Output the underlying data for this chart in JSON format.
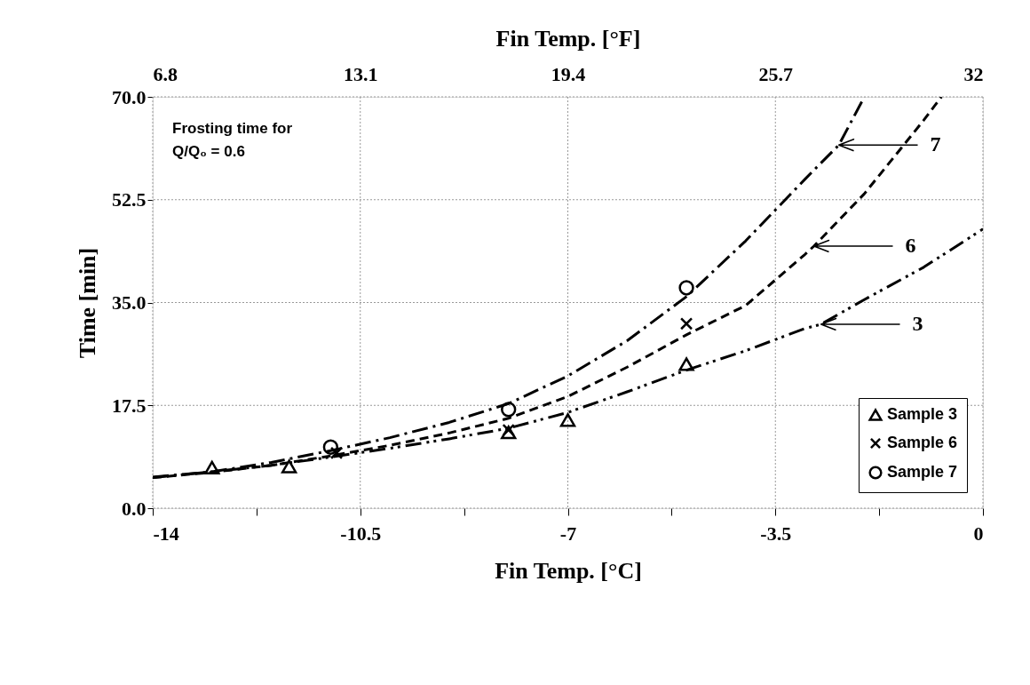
{
  "chart_data": {
    "type": "scatter",
    "xlabel": "Fin Temp. [°C]",
    "ylabel": "Time [min]",
    "x2label": "Fin Temp. [°F]",
    "xlim": [
      -14,
      0
    ],
    "ylim": [
      0,
      70
    ],
    "x2lim": [
      6.8,
      32
    ],
    "xticks": [
      -14,
      {
        "value": -12.25,
        "label": null
      },
      -10.5,
      {
        "value": -8.75,
        "label": null
      },
      -7,
      {
        "value": -5.25,
        "label": null
      },
      -3.5,
      {
        "value": -1.75,
        "label": null
      },
      0
    ],
    "yticks": [
      {
        "value": 0,
        "label": "0.0"
      },
      17.5,
      {
        "value": 35,
        "label": "35.0"
      },
      52.5,
      {
        "value": 70,
        "label": "70.0"
      }
    ],
    "x2ticks": [
      6.8,
      13.1,
      19.4,
      25.7,
      32
    ],
    "grid": true,
    "legend": "bottom right",
    "series": [
      {
        "name": "Sample 3",
        "marker": "triangle",
        "color": "#000000",
        "x": [
          -13,
          -11.7,
          -8,
          -7,
          -5
        ],
        "values": [
          6.9,
          7.1,
          12.9,
          15.0,
          24.5
        ]
      },
      {
        "name": "Sample 6",
        "marker": "cross",
        "color": "#000000",
        "x": [
          -10.9,
          -8,
          -5
        ],
        "values": [
          9.4,
          13.3,
          31.4
        ]
      },
      {
        "name": "Sample 7",
        "marker": "circle",
        "color": "#000000",
        "x": [
          -11,
          -8,
          -5
        ],
        "values": [
          10.4,
          16.8,
          37.5
        ]
      },
      {
        "type": "line",
        "line_style": "dashed",
        "color": "#000000",
        "x": [
          -14,
          -13,
          -12,
          -11,
          -10,
          -9,
          -8,
          -7,
          -6,
          -5,
          -4,
          -3,
          -2.43,
          -2
        ],
        "values": [
          5.3,
          6.2,
          7.8,
          9.8,
          12.0,
          14.6,
          17.8,
          22.5,
          28.5,
          36,
          45.5,
          56,
          61.8,
          70
        ]
      },
      {
        "type": "line",
        "line_style": "dashed",
        "color": "#000000",
        "x": [
          -14,
          -13,
          -12,
          -11,
          -10,
          -9,
          -8,
          -7,
          -6,
          -5,
          -4,
          -3,
          -2.85,
          -2,
          -1,
          -0.7
        ],
        "values": [
          5.2,
          6.1,
          7.3,
          8.9,
          10.7,
          12.8,
          15.3,
          19,
          24,
          29.5,
          34.5,
          43.2,
          44.6,
          53.5,
          66,
          70
        ]
      },
      {
        "type": "line",
        "line_style": "dashed",
        "color": "#000000",
        "x": [
          -14,
          -13,
          -12,
          -11,
          -10,
          -9,
          -8,
          -7,
          -6,
          -5,
          -4,
          -3,
          -2.73,
          -2,
          -1,
          0
        ],
        "values": [
          5.2,
          6.2,
          7.3,
          8.7,
          10.2,
          11.8,
          13.6,
          16.3,
          19.8,
          23.5,
          26.8,
          30.6,
          31.3,
          35.5,
          41,
          47.5
        ]
      }
    ],
    "annotations": [
      "Frosting time for\nQ/Q₀ = 0.6",
      "7",
      "6",
      "3"
    ]
  }
}
